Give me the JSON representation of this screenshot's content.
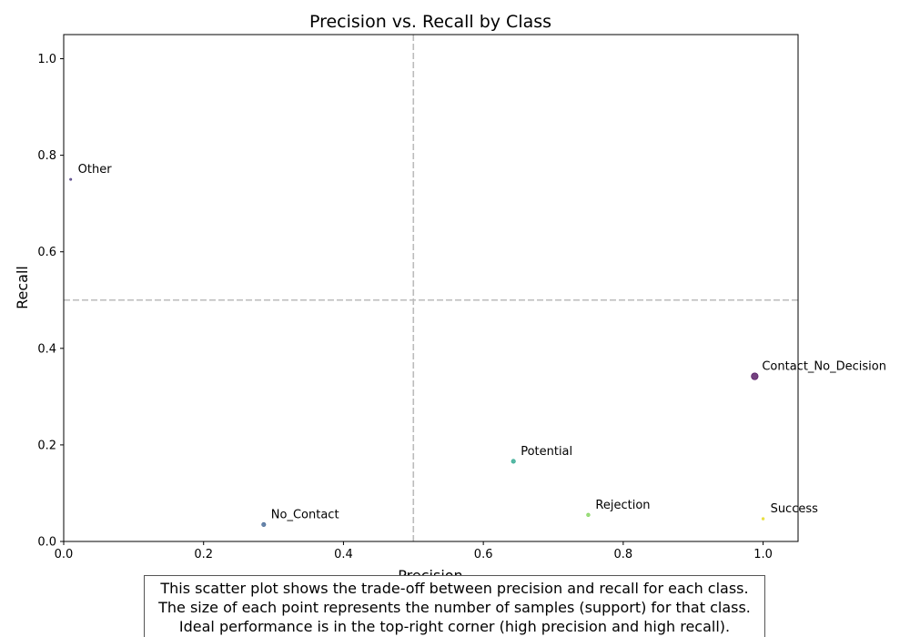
{
  "chart_data": {
    "type": "scatter",
    "title": "Precision vs. Recall by Class",
    "xlabel": "Precision",
    "ylabel": "Recall",
    "xlim": [
      0,
      1.05
    ],
    "ylim": [
      0,
      1.05
    ],
    "x_ticks": [
      "0.0",
      "0.2",
      "0.4",
      "0.6",
      "0.8",
      "1.0"
    ],
    "y_ticks": [
      "0.0",
      "0.2",
      "0.4",
      "0.6",
      "0.8",
      "1.0"
    ],
    "grid": false,
    "reference_lines": {
      "x": 0.5,
      "y": 0.5,
      "style": "dashed",
      "color": "#bbbbbb"
    },
    "points": [
      {
        "label": "Other",
        "x": 0.01,
        "y": 0.75,
        "support": 1,
        "color": "#46337e"
      },
      {
        "label": "Contact_No_Decision",
        "x": 0.988,
        "y": 0.342,
        "support": 40,
        "color": "#440154"
      },
      {
        "label": "Potential",
        "x": 0.643,
        "y": 0.166,
        "support": 14,
        "color": "#1fa187"
      },
      {
        "label": "No_Contact",
        "x": 0.286,
        "y": 0.035,
        "support": 14,
        "color": "#365c8d"
      },
      {
        "label": "Rejection",
        "x": 0.75,
        "y": 0.055,
        "support": 10,
        "color": "#7ad151"
      },
      {
        "label": "Success",
        "x": 1.0,
        "y": 0.047,
        "support": 5,
        "color": "#e4d81b"
      }
    ]
  },
  "caption": {
    "lines": [
      "This scatter plot shows the trade-off between precision and recall for each class.",
      "The size of each point represents the number of samples (support) for that class.",
      "Ideal performance is in the top-right corner (high precision and high recall)."
    ]
  }
}
